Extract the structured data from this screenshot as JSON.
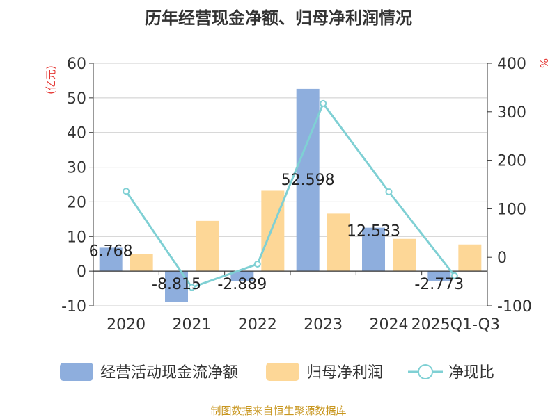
{
  "chart_data": {
    "type": "bar",
    "title": "历年经营现金净额、归母净利润情况",
    "categories": [
      "2020",
      "2021",
      "2022",
      "2023",
      "2024",
      "2025Q1-Q3"
    ],
    "series": [
      {
        "name": "经营活动现金流净额",
        "type": "bar",
        "axis": "left",
        "color": "#8eaedd",
        "values": [
          6.768,
          -8.815,
          -2.889,
          52.598,
          12.533,
          -2.773
        ],
        "labels": [
          "6.768",
          "-8.815",
          "-2.889",
          "52.598",
          "12.533",
          "-2.773"
        ]
      },
      {
        "name": "归母净利润",
        "type": "bar",
        "axis": "left",
        "color": "#fdd797",
        "values": [
          5.0,
          14.5,
          23.2,
          16.6,
          9.3,
          7.7
        ]
      },
      {
        "name": "净现比",
        "type": "line",
        "axis": "right",
        "color": "#7fd0d4",
        "values": [
          136,
          -62,
          -14,
          317,
          135,
          -38
        ]
      }
    ],
    "y_left": {
      "unit": "(亿元)",
      "ylim": [
        -10,
        60
      ],
      "ticks": [
        "-10",
        "0",
        "10",
        "20",
        "30",
        "40",
        "50",
        "60"
      ]
    },
    "y_right": {
      "unit": "%",
      "ylim": [
        -100,
        400
      ],
      "ticks": [
        "-100",
        "0",
        "100",
        "200",
        "300",
        "400"
      ]
    },
    "grid": true,
    "legend_position": "bottom"
  },
  "source": "制图数据来自恒生聚源数据库"
}
